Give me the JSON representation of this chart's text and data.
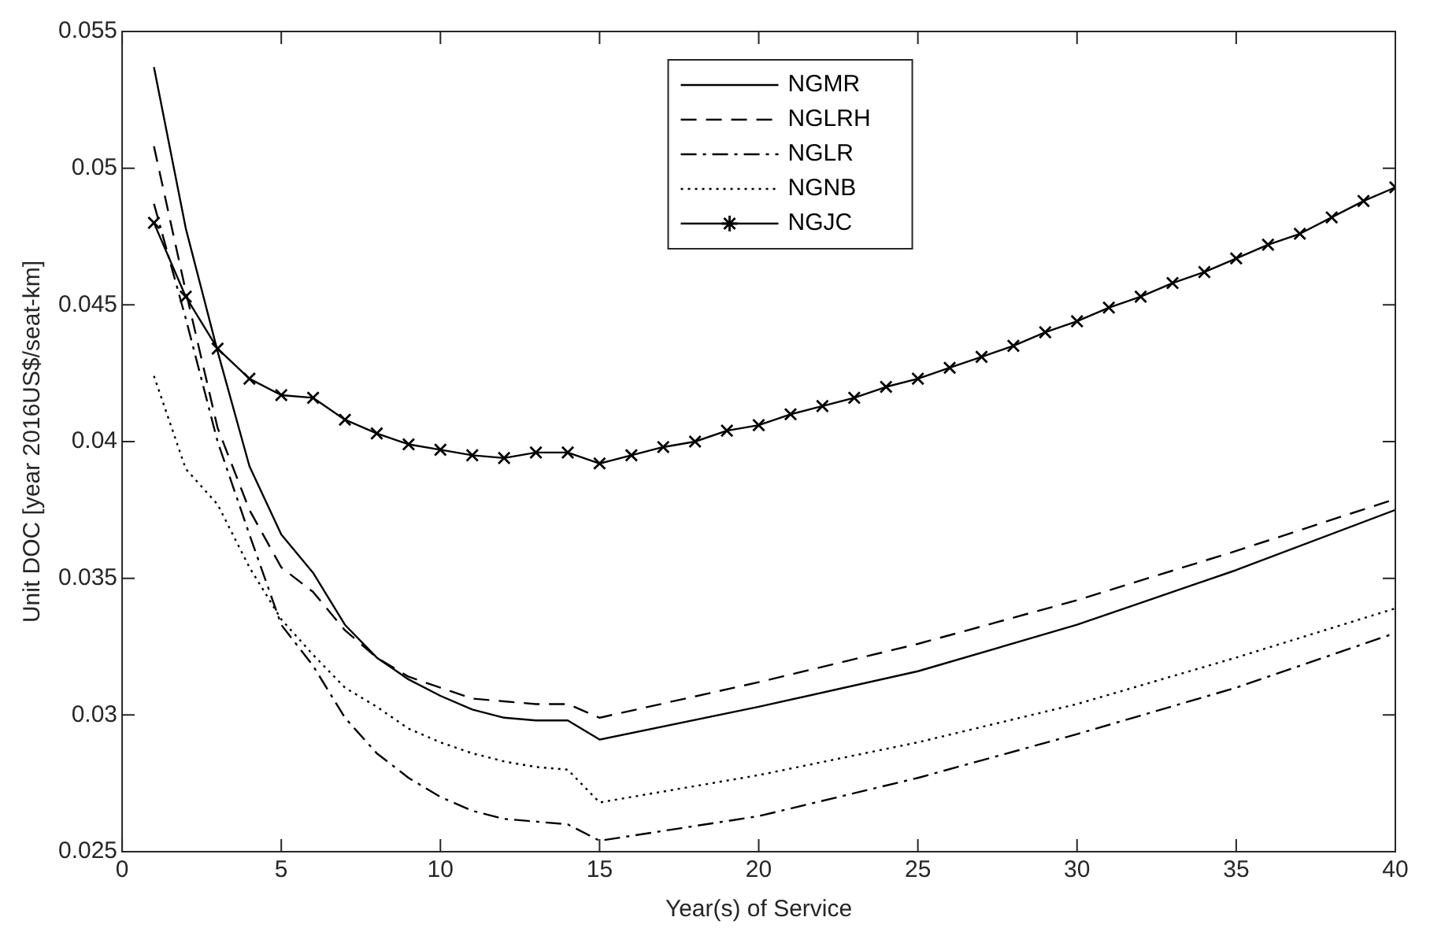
{
  "chart_data": {
    "type": "line",
    "xlabel": "Year(s) of Service",
    "ylabel": "Unit DOC [year 2016US$/seat-km]",
    "xlim": [
      0,
      40
    ],
    "xticks": [
      0,
      5,
      10,
      15,
      20,
      25,
      30,
      35,
      40
    ],
    "ylim": [
      0.025,
      0.055
    ],
    "yticks": [
      0.025,
      0.03,
      0.035,
      0.04,
      0.045,
      0.05,
      0.055
    ],
    "grid": false,
    "legend": "top",
    "series": [
      {
        "name": "NGMR",
        "color": "#000000",
        "line_style": "solid",
        "marker": "none",
        "x": [
          1,
          2,
          3,
          4,
          5,
          6,
          7,
          8,
          9,
          10,
          11,
          12,
          13,
          14,
          15,
          20,
          25,
          30,
          35,
          40
        ],
        "values": [
          0.0537,
          0.0478,
          0.0433,
          0.0391,
          0.0366,
          0.0352,
          0.0333,
          0.0321,
          0.0313,
          0.0307,
          0.0302,
          0.0299,
          0.0298,
          0.0298,
          0.0291,
          0.0303,
          0.0316,
          0.0333,
          0.0353,
          0.0375
        ]
      },
      {
        "name": "NGLRH",
        "color": "#000000",
        "line_style": "dashed",
        "marker": "none",
        "x": [
          1,
          2,
          3,
          4,
          5,
          6,
          7,
          8,
          9,
          10,
          11,
          12,
          13,
          14,
          15,
          20,
          25,
          30,
          35,
          40
        ],
        "values": [
          0.0508,
          0.0455,
          0.0405,
          0.0375,
          0.0354,
          0.0345,
          0.0331,
          0.0321,
          0.0314,
          0.031,
          0.0306,
          0.0305,
          0.0304,
          0.0304,
          0.0299,
          0.0312,
          0.0326,
          0.0342,
          0.036,
          0.0379
        ]
      },
      {
        "name": "NGLR",
        "color": "#000000",
        "line_style": "dashdot",
        "marker": "none",
        "x": [
          1,
          2,
          3,
          4,
          5,
          6,
          7,
          8,
          9,
          10,
          11,
          12,
          13,
          14,
          15,
          20,
          25,
          30,
          35,
          40
        ],
        "values": [
          0.0487,
          0.0445,
          0.04,
          0.0366,
          0.0333,
          0.0318,
          0.0299,
          0.0286,
          0.0277,
          0.027,
          0.0265,
          0.0262,
          0.0261,
          0.026,
          0.0254,
          0.0263,
          0.0277,
          0.0293,
          0.031,
          0.033
        ]
      },
      {
        "name": "NGNB",
        "color": "#000000",
        "line_style": "dotted",
        "marker": "none",
        "x": [
          1,
          2,
          3,
          4,
          5,
          6,
          7,
          8,
          9,
          10,
          11,
          12,
          13,
          14,
          15,
          20,
          25,
          30,
          35,
          40
        ],
        "values": [
          0.0424,
          0.039,
          0.0377,
          0.0354,
          0.0335,
          0.0322,
          0.031,
          0.0303,
          0.0295,
          0.029,
          0.0286,
          0.0283,
          0.0281,
          0.028,
          0.0268,
          0.0278,
          0.029,
          0.0304,
          0.0321,
          0.0339
        ]
      },
      {
        "name": "NGJC",
        "color": "#000000",
        "line_style": "solid",
        "marker": "cross",
        "x": [
          1,
          2,
          3,
          4,
          5,
          6,
          7,
          8,
          9,
          10,
          11,
          12,
          13,
          14,
          15,
          16,
          17,
          18,
          19,
          20,
          21,
          22,
          23,
          24,
          25,
          26,
          27,
          28,
          29,
          30,
          31,
          32,
          33,
          34,
          35,
          36,
          37,
          38,
          39,
          40
        ],
        "values": [
          0.048,
          0.0453,
          0.0434,
          0.0423,
          0.0417,
          0.0416,
          0.0408,
          0.0403,
          0.0399,
          0.0397,
          0.0395,
          0.0394,
          0.0396,
          0.0396,
          0.0392,
          0.0395,
          0.0398,
          0.04,
          0.0404,
          0.0406,
          0.041,
          0.0413,
          0.0416,
          0.042,
          0.0423,
          0.0427,
          0.0431,
          0.0435,
          0.044,
          0.0444,
          0.0449,
          0.0453,
          0.0458,
          0.0462,
          0.0467,
          0.0472,
          0.0476,
          0.0482,
          0.0488,
          0.0493
        ]
      }
    ]
  }
}
